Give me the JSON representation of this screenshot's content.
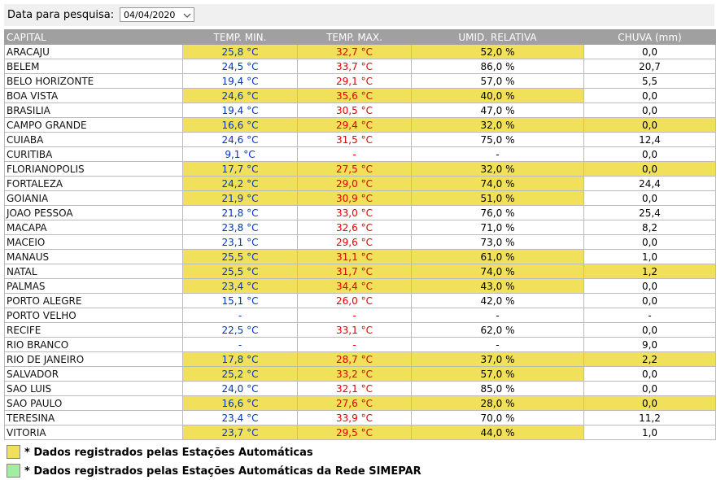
{
  "search": {
    "label": "Data para pesquisa:",
    "date": "04/04/2020"
  },
  "table": {
    "headers": [
      "CAPITAL",
      "TEMP. MIN.",
      "TEMP. MAX.",
      "UMID. RELATIVA",
      "CHUVA (mm)"
    ],
    "highlight_color": "#f0e05a",
    "min_color": "#0033cc",
    "max_color": "#e00000",
    "rows": [
      {
        "cells": [
          "ARACAJU",
          "25,8 °C",
          "32,7 °C",
          "52,0 %",
          "0,0"
        ],
        "auto": [
          1,
          2,
          3
        ]
      },
      {
        "cells": [
          "BELEM",
          "24,5 °C",
          "33,7 °C",
          "86,0 %",
          "20,7"
        ],
        "auto": []
      },
      {
        "cells": [
          "BELO HORIZONTE",
          "19,4 °C",
          "29,1 °C",
          "57,0 %",
          "5,5"
        ],
        "auto": []
      },
      {
        "cells": [
          "BOA VISTA",
          "24,6 °C",
          "35,6 °C",
          "40,0 %",
          "0,0"
        ],
        "auto": [
          1,
          2,
          3
        ]
      },
      {
        "cells": [
          "BRASILIA",
          "19,4 °C",
          "30,5 °C",
          "47,0 %",
          "0,0"
        ],
        "auto": []
      },
      {
        "cells": [
          "CAMPO GRANDE",
          "16,6 °C",
          "29,4 °C",
          "32,0 %",
          "0,0"
        ],
        "auto": [
          1,
          2,
          3,
          4
        ]
      },
      {
        "cells": [
          "CUIABA",
          "24,6 °C",
          "31,5 °C",
          "75,0 %",
          "12,4"
        ],
        "auto": []
      },
      {
        "cells": [
          "CURITIBA",
          "9,1 °C",
          "-",
          "-",
          "0,0"
        ],
        "auto": []
      },
      {
        "cells": [
          "FLORIANOPOLIS",
          "17,7 °C",
          "27,5 °C",
          "32,0 %",
          "0,0"
        ],
        "auto": [
          1,
          2,
          3,
          4
        ]
      },
      {
        "cells": [
          "FORTALEZA",
          "24,2 °C",
          "29,0 °C",
          "74,0 %",
          "24,4"
        ],
        "auto": [
          1,
          2,
          3
        ]
      },
      {
        "cells": [
          "GOIANIA",
          "21,9 °C",
          "30,9 °C",
          "51,0 %",
          "0,0"
        ],
        "auto": [
          1,
          2,
          3
        ]
      },
      {
        "cells": [
          "JOAO PESSOA",
          "21,8 °C",
          "33,0 °C",
          "76,0 %",
          "25,4"
        ],
        "auto": []
      },
      {
        "cells": [
          "MACAPA",
          "23,8 °C",
          "32,6 °C",
          "71,0 %",
          "8,2"
        ],
        "auto": []
      },
      {
        "cells": [
          "MACEIO",
          "23,1 °C",
          "29,6 °C",
          "73,0 %",
          "0,0"
        ],
        "auto": []
      },
      {
        "cells": [
          "MANAUS",
          "25,5 °C",
          "31,1 °C",
          "61,0 %",
          "1,0"
        ],
        "auto": [
          1,
          2,
          3
        ]
      },
      {
        "cells": [
          "NATAL",
          "25,5 °C",
          "31,7 °C",
          "74,0 %",
          "1,2"
        ],
        "auto": [
          1,
          2,
          3,
          4
        ]
      },
      {
        "cells": [
          "PALMAS",
          "23,4 °C",
          "34,4 °C",
          "43,0 %",
          "0,0"
        ],
        "auto": [
          1,
          2,
          3
        ]
      },
      {
        "cells": [
          "PORTO ALEGRE",
          "15,1 °C",
          "26,0 °C",
          "42,0 %",
          "0,0"
        ],
        "auto": []
      },
      {
        "cells": [
          "PORTO VELHO",
          "-",
          "-",
          "-",
          "-"
        ],
        "auto": []
      },
      {
        "cells": [
          "RECIFE",
          "22,5 °C",
          "33,1 °C",
          "62,0 %",
          "0,0"
        ],
        "auto": []
      },
      {
        "cells": [
          "RIO BRANCO",
          "-",
          "-",
          "-",
          "9,0"
        ],
        "auto": []
      },
      {
        "cells": [
          "RIO DE JANEIRO",
          "17,8 °C",
          "28,7 °C",
          "37,0 %",
          "2,2"
        ],
        "auto": [
          1,
          2,
          3,
          4
        ]
      },
      {
        "cells": [
          "SALVADOR",
          "25,2 °C",
          "33,2 °C",
          "57,0 %",
          "0,0"
        ],
        "auto": [
          1,
          2,
          3
        ]
      },
      {
        "cells": [
          "SAO LUIS",
          "24,0 °C",
          "32,1 °C",
          "85,0 %",
          "0,0"
        ],
        "auto": []
      },
      {
        "cells": [
          "SAO PAULO",
          "16,6 °C",
          "27,6 °C",
          "28,0 %",
          "0,0"
        ],
        "auto": [
          1,
          2,
          3,
          4
        ]
      },
      {
        "cells": [
          "TERESINA",
          "23,4 °C",
          "33,9 °C",
          "70,0 %",
          "11,2"
        ],
        "auto": []
      },
      {
        "cells": [
          "VITORIA",
          "23,7 °C",
          "29,5 °C",
          "44,0 %",
          "1,0"
        ],
        "auto": [
          1,
          2,
          3
        ]
      }
    ]
  },
  "legend": [
    {
      "color": "#f0e05a",
      "text": "* Dados registrados pelas Estações Automáticas"
    },
    {
      "color": "#a0eea0",
      "text": "* Dados registrados pelas Estações Automáticas da Rede SIMEPAR"
    }
  ]
}
